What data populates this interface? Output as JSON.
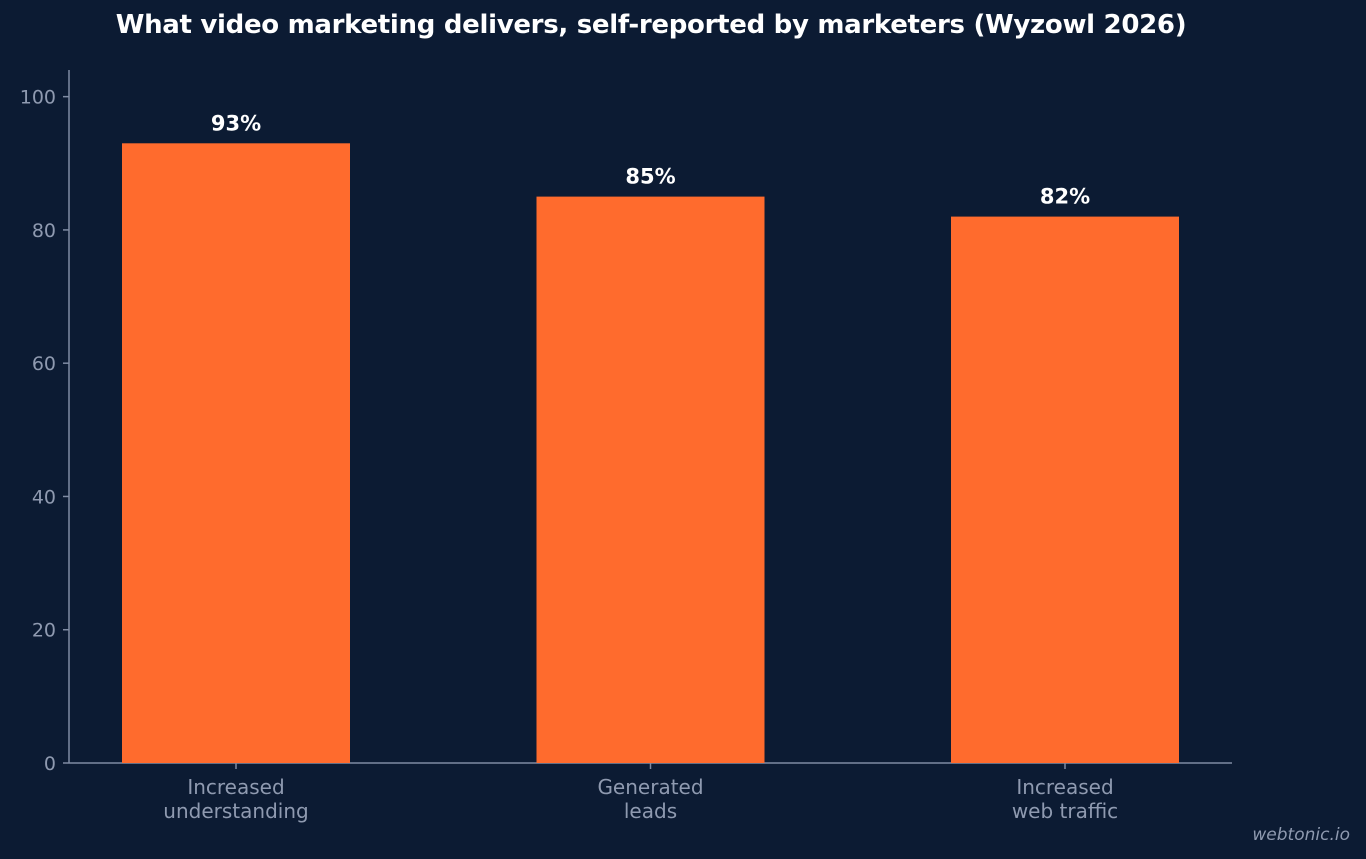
{
  "chart_data": {
    "type": "bar",
    "title": "What video marketing delivers, self-reported by marketers (Wyzowl 2026)",
    "xlabel": "",
    "ylabel": "",
    "categories": [
      [
        "Increased",
        "understanding"
      ],
      [
        "Generated",
        "leads"
      ],
      [
        "Increased",
        "web traffic"
      ]
    ],
    "values": [
      93,
      85,
      82
    ],
    "value_labels": [
      "93%",
      "85%",
      "82%"
    ],
    "ylim": [
      0,
      104
    ],
    "yticks": [
      0,
      20,
      40,
      60,
      80,
      100
    ],
    "ytick_labels": [
      "0",
      "20",
      "40",
      "60",
      "80",
      "100"
    ],
    "grid": false,
    "bar_color": "#ff6b2d",
    "background_color": "#0c1b33",
    "axis_color": "#7f8ba3"
  },
  "watermark": "webtonic.io"
}
